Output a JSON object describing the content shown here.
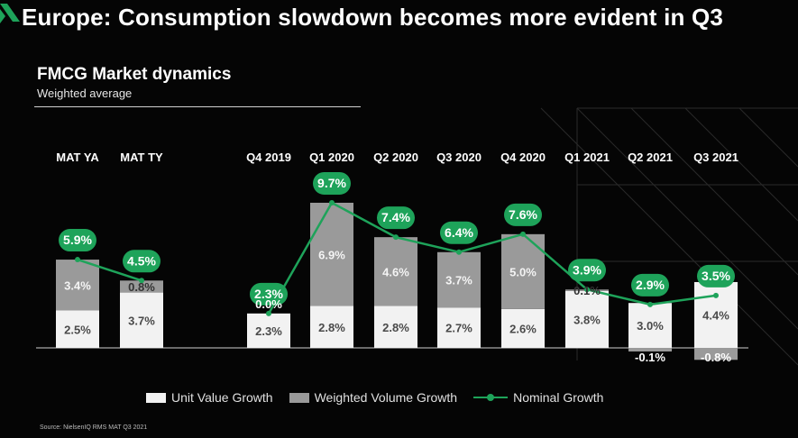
{
  "header": {
    "title": "Europe: Consumption slowdown becomes more evident in Q3",
    "subtitle": "FMCG Market dynamics",
    "note": "Weighted average",
    "source": "Source: NielsenIQ RMS MAT Q3 2021"
  },
  "colors": {
    "background": "#050505",
    "unit_value": "#f2f2f2",
    "weighted_volume": "#9a9a9a",
    "nominal": "#1ea35a"
  },
  "legend": {
    "unit_value": "Unit Value Growth",
    "weighted_volume": "Weighted Volume Growth",
    "nominal": "Nominal Growth"
  },
  "chart_data": {
    "type": "bar",
    "stacked": true,
    "categories": [
      "MAT YA",
      "MAT TY",
      "Q4 2019",
      "Q1 2020",
      "Q2 2020",
      "Q3 2020",
      "Q4 2020",
      "Q1 2021",
      "Q2 2021",
      "Q3 2021"
    ],
    "series": [
      {
        "name": "Unit Value Growth",
        "values": [
          2.5,
          3.7,
          2.3,
          2.8,
          2.8,
          2.7,
          2.6,
          3.8,
          3.0,
          4.4
        ],
        "labels": [
          "2.5%",
          "3.7%",
          "2.3%",
          "2.8%",
          "2.8%",
          "2.7%",
          "2.6%",
          "3.8%",
          "3.0%",
          "4.4%"
        ]
      },
      {
        "name": "Weighted Volume Growth",
        "values": [
          3.4,
          0.8,
          0.0,
          6.9,
          4.6,
          3.7,
          5.0,
          0.1,
          -0.1,
          -0.8
        ],
        "labels": [
          "3.4%",
          "0.8%",
          "0.0%",
          "6.9%",
          "4.6%",
          "3.7%",
          "5.0%",
          "0.1%",
          "-0.1%",
          "-0.8%"
        ]
      },
      {
        "name": "Nominal Growth",
        "type": "line",
        "values": [
          5.9,
          4.5,
          2.3,
          9.7,
          7.4,
          6.4,
          7.6,
          3.9,
          2.9,
          3.5
        ],
        "labels": [
          "5.9%",
          "4.5%",
          "2.3%",
          "9.7%",
          "7.4%",
          "6.4%",
          "7.6%",
          "3.9%",
          "2.9%",
          "3.5%"
        ]
      }
    ],
    "line_groups": [
      [
        0,
        1
      ],
      [
        2,
        3,
        4,
        5,
        6,
        7,
        8,
        9
      ]
    ],
    "ylim": [
      -1,
      10
    ],
    "grid": false,
    "legend_position": "bottom"
  }
}
